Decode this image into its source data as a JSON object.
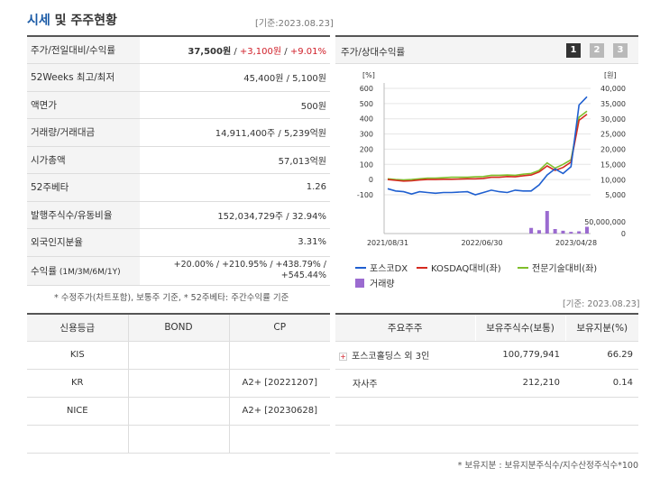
{
  "header": {
    "title_blue": "시세",
    "title_rest": "및 주주현황",
    "date": "[기준:2023.08.23]"
  },
  "stats": [
    {
      "label": "주가/전일대비/수익률",
      "price": "37,500원",
      "sep1": " / ",
      "change": "+3,100원",
      "sep2": " / ",
      "pct": "+9.01%"
    },
    {
      "label": "52Weeks 최고/최저",
      "value": "45,400원 / 5,100원"
    },
    {
      "label": "액면가",
      "value": "500원"
    },
    {
      "label": "거래량/거래대금",
      "value": "14,911,400주 / 5,239억원"
    },
    {
      "label": "시가총액",
      "value": "57,013억원"
    },
    {
      "label": "52주베타",
      "value": "1.26"
    },
    {
      "label": "발행주식수/유동비율",
      "value": "152,034,729주 / 32.94%"
    },
    {
      "label": "외국인지분율",
      "value": "3.31%"
    },
    {
      "label": "수익률",
      "label_sub": " (1M/3M/6M/1Y)",
      "line1": "+20.00% / +210.95% / +438.79% /",
      "line2": "+545.44%"
    }
  ],
  "stats_note": "* 수정주가(차트포함), 보통주 기준, * 52주베타: 주간수익률 기준",
  "chart_panel": {
    "label": "주가/상대수익률",
    "pages": [
      "1",
      "2",
      "3"
    ],
    "selected_page": "1",
    "colors": {
      "active": "#333333",
      "inactive": "#b9b9b9"
    }
  },
  "chart_data": {
    "type": "line",
    "left_unit": "[%]",
    "right_unit": "[원]",
    "left_ticks": [
      "600",
      "500",
      "400",
      "300",
      "200",
      "100",
      "0",
      "-100"
    ],
    "right_ticks": [
      "40,000",
      "35,000",
      "30,000",
      "25,000",
      "20,000",
      "15,000",
      "10,000",
      "5,000"
    ],
    "volume_tick": "50,000,000",
    "volume_tick_zero": "0",
    "x_ticks": [
      "2021/08/31",
      "2022/06/30",
      "2023/04/28"
    ],
    "ylim_left": [
      -100,
      600
    ],
    "ylim_right": [
      5000,
      40000
    ],
    "series": [
      {
        "name": "포스코DX",
        "color": "#1f5fd0",
        "values": [
          -60,
          -75,
          -80,
          -95,
          -80,
          -85,
          -90,
          -85,
          -85,
          -82,
          -80,
          -100,
          -85,
          -70,
          -80,
          -85,
          -70,
          -75,
          -75,
          -35,
          30,
          70,
          40,
          85,
          490,
          545
        ]
      },
      {
        "name": "KOSDAQ대비(좌)",
        "color": "#d52a1f",
        "values": [
          0,
          -5,
          -10,
          -8,
          -3,
          0,
          0,
          2,
          2,
          3,
          5,
          5,
          8,
          15,
          15,
          20,
          18,
          25,
          30,
          50,
          90,
          60,
          80,
          115,
          390,
          430
        ]
      },
      {
        "name": "전문기술대비(좌)",
        "color": "#7fbe2a",
        "values": [
          5,
          0,
          -3,
          0,
          5,
          10,
          10,
          12,
          15,
          15,
          15,
          18,
          20,
          28,
          28,
          30,
          28,
          35,
          40,
          60,
          110,
          75,
          100,
          130,
          410,
          450
        ]
      }
    ],
    "volume": {
      "name": "거래량",
      "color": "#9b6bd0",
      "values": [
        0,
        0,
        0,
        0,
        0,
        0,
        0,
        0,
        0,
        0,
        0,
        0,
        0,
        0,
        0,
        0,
        0,
        0,
        10,
        6,
        40,
        8,
        5,
        3,
        4,
        12
      ]
    },
    "volume_max": 60000000
  },
  "credit": {
    "headers": [
      "신용등급",
      "BOND",
      "CP"
    ],
    "rows": [
      [
        "KIS",
        "",
        ""
      ],
      [
        "KR",
        "",
        "A2+  [20221207]"
      ],
      [
        "NICE",
        "",
        "A2+  [20230628]"
      ],
      [
        "",
        "",
        ""
      ]
    ]
  },
  "shareholders": {
    "date": "[기준: 2023.08.23]",
    "headers": [
      "주요주주",
      "보유주식수(보통)",
      "보유지분(%)"
    ],
    "rows": [
      {
        "name": "포스코홀딩스 외 3인",
        "shares": "100,779,941",
        "pct": "66.29",
        "expand": "+"
      },
      {
        "name": "자사주",
        "shares": "212,210",
        "pct": "0.14"
      },
      {
        "name": "",
        "shares": "",
        "pct": ""
      },
      {
        "name": "",
        "shares": "",
        "pct": ""
      }
    ],
    "note": "* 보유지분 : 보유지분주식수/지수산정주식수*100"
  }
}
